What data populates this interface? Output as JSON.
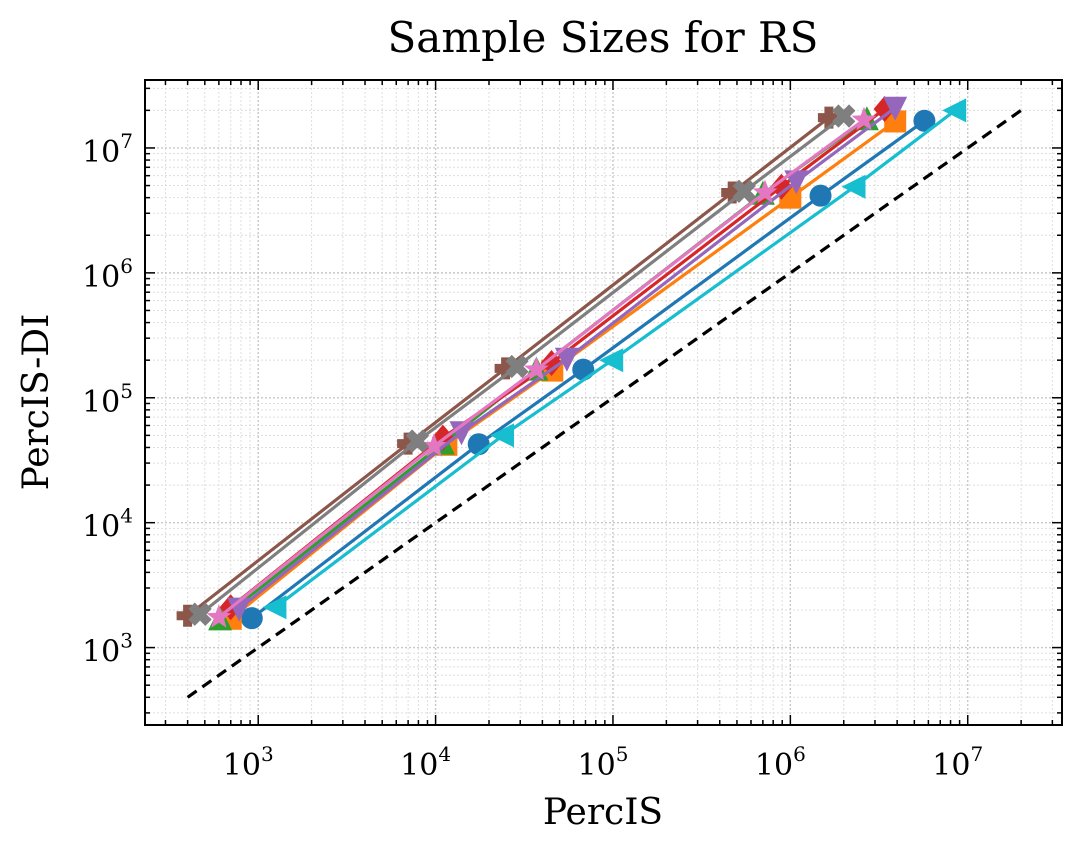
{
  "chart_data": {
    "type": "line",
    "title": "Sample Sizes for RS",
    "xlabel": "PercIS",
    "ylabel": "PercIS-DI",
    "x_scale": "log",
    "y_scale": "log",
    "xlim": [
      230,
      34000000
    ],
    "ylim": [
      240,
      35000000
    ],
    "grid": true,
    "x_ticks": [
      {
        "value": 1000,
        "base": "10",
        "exp": "3"
      },
      {
        "value": 10000,
        "base": "10",
        "exp": "4"
      },
      {
        "value": 100000,
        "base": "10",
        "exp": "5"
      },
      {
        "value": 1000000,
        "base": "10",
        "exp": "6"
      },
      {
        "value": 10000000,
        "base": "10",
        "exp": "7"
      }
    ],
    "y_ticks": [
      {
        "value": 1000,
        "base": "10",
        "exp": "3"
      },
      {
        "value": 10000,
        "base": "10",
        "exp": "4"
      },
      {
        "value": 100000,
        "base": "10",
        "exp": "5"
      },
      {
        "value": 1000000,
        "base": "10",
        "exp": "6"
      },
      {
        "value": 10000000,
        "base": "10",
        "exp": "7"
      }
    ],
    "reference_line": {
      "style": "dashed",
      "color": "#000000",
      "x": [
        400,
        20000000
      ],
      "y": [
        400,
        20000000
      ]
    },
    "series": [
      {
        "color": "#1f77b4",
        "marker": "circle",
        "points": [
          [
            920,
            1720
          ],
          [
            17500,
            42500
          ],
          [
            68000,
            168000
          ],
          [
            1480000,
            4150000
          ],
          [
            5700000,
            16500000
          ]
        ]
      },
      {
        "color": "#ff7f0e",
        "marker": "square",
        "points": [
          [
            700,
            1700
          ],
          [
            11500,
            42000
          ],
          [
            45500,
            165000
          ],
          [
            1000000,
            4000000
          ],
          [
            3900000,
            16300000
          ]
        ]
      },
      {
        "color": "#2ca02c",
        "marker": "triangle-up",
        "points": [
          [
            610,
            1680
          ],
          [
            11000,
            43000
          ],
          [
            37000,
            168000
          ],
          [
            700000,
            4300000
          ],
          [
            2700000,
            17000000
          ]
        ]
      },
      {
        "color": "#d62728",
        "marker": "diamond",
        "points": [
          [
            700,
            2100
          ],
          [
            11000,
            48000
          ],
          [
            45000,
            190000
          ],
          [
            890000,
            4900000
          ],
          [
            3400000,
            20500000
          ]
        ]
      },
      {
        "color": "#9467bd",
        "marker": "triangle-down",
        "points": [
          [
            780,
            2050
          ],
          [
            14000,
            53000
          ],
          [
            55000,
            205000
          ],
          [
            1080000,
            5400000
          ],
          [
            3900000,
            21000000
          ]
        ]
      },
      {
        "color": "#8c564b",
        "marker": "plus-filled",
        "points": [
          [
            400,
            1800
          ],
          [
            7000,
            43000
          ],
          [
            24800,
            172000
          ],
          [
            470000,
            4400000
          ],
          [
            1650000,
            17500000
          ]
        ]
      },
      {
        "color": "#e377c2",
        "marker": "star",
        "points": [
          [
            600,
            1750
          ],
          [
            9800,
            41000
          ],
          [
            37000,
            168000
          ],
          [
            720000,
            4400000
          ],
          [
            2600000,
            16800000
          ]
        ]
      },
      {
        "color": "#7f7f7f",
        "marker": "x-filled",
        "points": [
          [
            470,
            1850
          ],
          [
            7900,
            45000
          ],
          [
            28800,
            178000
          ],
          [
            550000,
            4500000
          ],
          [
            2000000,
            18000000
          ]
        ]
      },
      {
        "color": "#17becf",
        "marker": "triangle-left",
        "points": [
          [
            1250,
            2100
          ],
          [
            24000,
            50000
          ],
          [
            99000,
            200000
          ],
          [
            2300000,
            4900000
          ],
          [
            8500000,
            20000000
          ]
        ]
      }
    ]
  }
}
